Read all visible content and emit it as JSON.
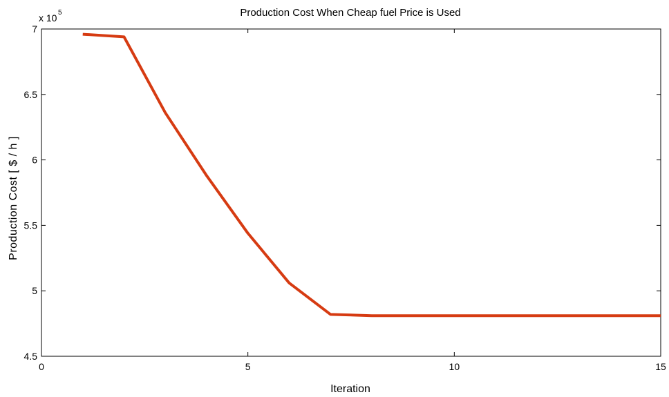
{
  "chart_data": {
    "type": "line",
    "title": "Production Cost When Cheap fuel Price is Used",
    "xlabel": "Iteration",
    "ylabel": "Production Cost [ $ / h ]",
    "y_exponent_label": {
      "base": "x 10",
      "exponent": "5"
    },
    "xlim": [
      0,
      15
    ],
    "ylim": [
      4.5,
      7
    ],
    "x_ticks": [
      0,
      5,
      10,
      15
    ],
    "y_ticks": [
      4.5,
      5,
      5.5,
      6,
      6.5,
      7
    ],
    "x_tick_labels": [
      "0",
      "5",
      "10",
      "15"
    ],
    "y_tick_labels": [
      "4.5",
      "5",
      "5.5",
      "6",
      "6.5",
      "7"
    ],
    "grid": false,
    "series": [
      {
        "color": "#d63b12",
        "x": [
          1,
          2,
          3,
          4,
          5,
          6,
          7,
          8,
          9,
          10,
          11,
          12,
          13,
          14,
          15
        ],
        "y": [
          6.96,
          6.94,
          6.36,
          5.88,
          5.44,
          5.06,
          4.82,
          4.81,
          4.81,
          4.81,
          4.81,
          4.81,
          4.81,
          4.81,
          4.81
        ]
      }
    ]
  }
}
